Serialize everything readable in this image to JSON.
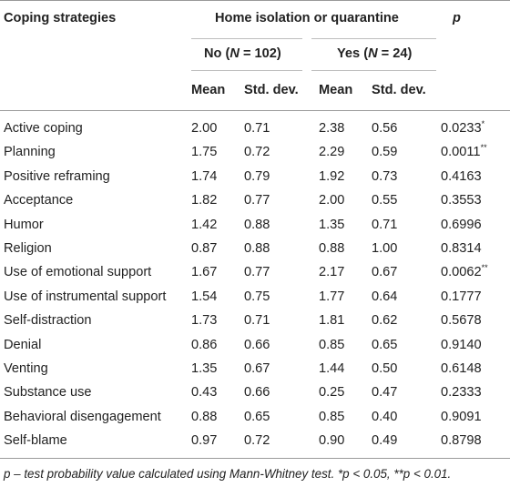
{
  "header": {
    "col_strategy": "Coping strategies",
    "group_title": "Home isolation or quarantine",
    "col_p": "p",
    "no_group": {
      "label": "No (",
      "n": "N",
      "eq": " = 102)"
    },
    "yes_group": {
      "label": "Yes (",
      "n": "N",
      "eq": " = 24)"
    },
    "mean": "Mean",
    "sd": "Std. dev."
  },
  "rows": [
    {
      "name": "Active coping",
      "no_mean": "2.00",
      "no_sd": "0.71",
      "yes_mean": "2.38",
      "yes_sd": "0.56",
      "p": "0.0233",
      "sig": "*"
    },
    {
      "name": "Planning",
      "no_mean": "1.75",
      "no_sd": "0.72",
      "yes_mean": "2.29",
      "yes_sd": "0.59",
      "p": "0.0011",
      "sig": "**"
    },
    {
      "name": "Positive reframing",
      "no_mean": "1.74",
      "no_sd": "0.79",
      "yes_mean": "1.92",
      "yes_sd": "0.73",
      "p": "0.4163",
      "sig": ""
    },
    {
      "name": "Acceptance",
      "no_mean": "1.82",
      "no_sd": "0.77",
      "yes_mean": "2.00",
      "yes_sd": "0.55",
      "p": "0.3553",
      "sig": ""
    },
    {
      "name": "Humor",
      "no_mean": "1.42",
      "no_sd": "0.88",
      "yes_mean": "1.35",
      "yes_sd": "0.71",
      "p": "0.6996",
      "sig": ""
    },
    {
      "name": "Religion",
      "no_mean": "0.87",
      "no_sd": "0.88",
      "yes_mean": "0.88",
      "yes_sd": "1.00",
      "p": "0.8314",
      "sig": ""
    },
    {
      "name": "Use of emotional support",
      "no_mean": "1.67",
      "no_sd": "0.77",
      "yes_mean": "2.17",
      "yes_sd": "0.67",
      "p": "0.0062",
      "sig": "**"
    },
    {
      "name": "Use of instrumental support",
      "no_mean": "1.54",
      "no_sd": "0.75",
      "yes_mean": "1.77",
      "yes_sd": "0.64",
      "p": "0.1777",
      "sig": ""
    },
    {
      "name": "Self-distraction",
      "no_mean": "1.73",
      "no_sd": "0.71",
      "yes_mean": "1.81",
      "yes_sd": "0.62",
      "p": "0.5678",
      "sig": ""
    },
    {
      "name": "Denial",
      "no_mean": "0.86",
      "no_sd": "0.66",
      "yes_mean": "0.85",
      "yes_sd": "0.65",
      "p": "0.9140",
      "sig": ""
    },
    {
      "name": "Venting",
      "no_mean": "1.35",
      "no_sd": "0.67",
      "yes_mean": "1.44",
      "yes_sd": "0.50",
      "p": "0.6148",
      "sig": ""
    },
    {
      "name": "Substance use",
      "no_mean": "0.43",
      "no_sd": "0.66",
      "yes_mean": "0.25",
      "yes_sd": "0.47",
      "p": "0.2333",
      "sig": ""
    },
    {
      "name": "Behavioral disengagement",
      "no_mean": "0.88",
      "no_sd": "0.65",
      "yes_mean": "0.85",
      "yes_sd": "0.40",
      "p": "0.9091",
      "sig": ""
    },
    {
      "name": "Self-blame",
      "no_mean": "0.97",
      "no_sd": "0.72",
      "yes_mean": "0.90",
      "yes_sd": "0.49",
      "p": "0.8798",
      "sig": ""
    }
  ],
  "footnote": "p – test probability value calculated using Mann-Whitney test. *p < 0.05, **p < 0.01."
}
